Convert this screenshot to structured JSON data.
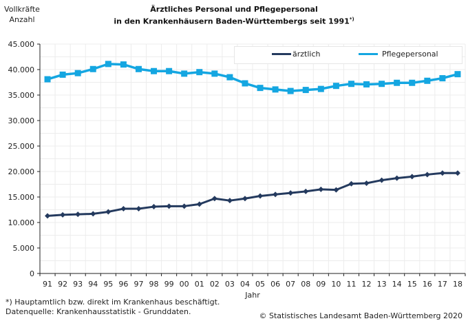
{
  "chart_data": {
    "type": "line",
    "title_line1": "Ärztliches Personal und Pflegepersonal",
    "title_line2": "in den Krankenhäusern Baden-Württembergs seit 1991",
    "title_note": "*)",
    "ylabel_line1": "Vollkräfte",
    "ylabel_line2": "Anzahl",
    "xlabel": "Jahr",
    "ylim": [
      0,
      45000
    ],
    "yticks": [
      0,
      5000,
      10000,
      15000,
      20000,
      25000,
      30000,
      35000,
      40000,
      45000
    ],
    "ytick_labels": [
      "0",
      "5.000",
      "10.000",
      "15.000",
      "20.000",
      "25.000",
      "30.000",
      "35.000",
      "40.000",
      "45.000"
    ],
    "categories": [
      "91",
      "92",
      "93",
      "94",
      "95",
      "96",
      "97",
      "98",
      "99",
      "00",
      "01",
      "02",
      "03",
      "04",
      "05",
      "06",
      "07",
      "08",
      "09",
      "10",
      "11",
      "12",
      "13",
      "14",
      "15",
      "16",
      "17",
      "18"
    ],
    "grid": true,
    "legend_position": "top-right",
    "series": [
      {
        "name": "ärztlich",
        "color": "#243a5e",
        "marker": "diamond",
        "values": [
          11300,
          11500,
          11600,
          11700,
          12100,
          12700,
          12700,
          13100,
          13200,
          13200,
          13600,
          14700,
          14300,
          14700,
          15200,
          15500,
          15800,
          16100,
          16500,
          16400,
          17600,
          17700,
          18300,
          18700,
          19000,
          19400,
          19700,
          19700
        ]
      },
      {
        "name": "Pflegepersonal",
        "color": "#14a6e1",
        "marker": "square",
        "values": [
          38100,
          39000,
          39300,
          40100,
          41100,
          41000,
          40100,
          39700,
          39700,
          39200,
          39500,
          39200,
          38500,
          37300,
          36400,
          36100,
          35800,
          36000,
          36200,
          36800,
          37200,
          37100,
          37200,
          37400,
          37400,
          37800,
          38300,
          39100
        ]
      }
    ]
  },
  "footnotes": {
    "note": "*) Hauptamtlich bzw. direkt im Krankenhaus beschäftigt.",
    "source": "Datenquelle: Krankenhausstatistik - Grunddaten.",
    "copyright": "© Statistisches Landesamt Baden-Württemberg 2020"
  }
}
